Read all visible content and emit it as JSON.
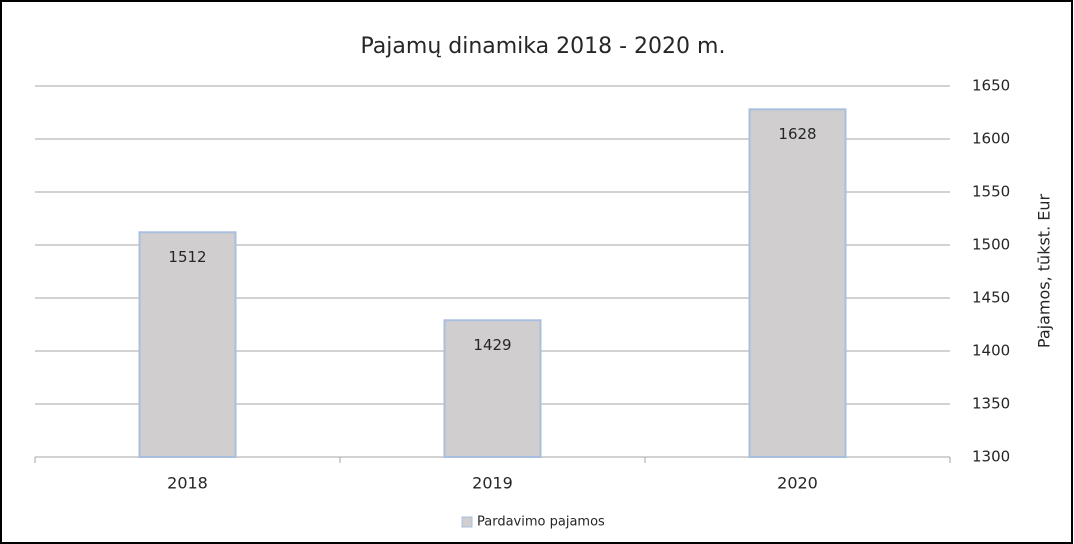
{
  "chart_data": {
    "type": "bar",
    "title": "Pajamų dinamika 2018 - 2020 m.",
    "categories": [
      "2018",
      "2019",
      "2020"
    ],
    "series": [
      {
        "name": "Pardavimo pajamos",
        "color": "#d0cece",
        "values": [
          1512,
          1429,
          1628
        ]
      }
    ],
    "y_label": "Pajamos, tūkst. Eur",
    "ylim": [
      1300,
      1650
    ],
    "yticks": [
      1300,
      1350,
      1400,
      1450,
      1500,
      1550,
      1600,
      1650
    ],
    "y_axis_side": "right",
    "grid": true,
    "legend": "bottom"
  }
}
